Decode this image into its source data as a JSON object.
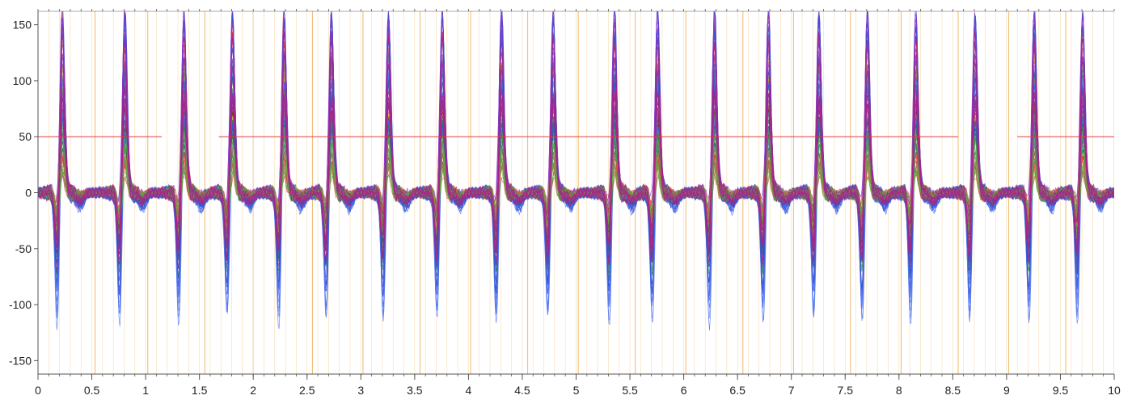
{
  "chart_data": {
    "type": "line",
    "title": "",
    "xlabel": "",
    "ylabel": "",
    "xlim": [
      0,
      10
    ],
    "ylim": [
      -162,
      162
    ],
    "x_ticks": [
      0,
      0.5,
      1,
      1.5,
      2,
      2.5,
      3,
      3.5,
      4,
      4.5,
      5,
      5.5,
      6,
      6.5,
      7,
      7.5,
      8,
      8.5,
      9,
      9.5,
      10
    ],
    "x_tick_labels": [
      "0",
      "0.5",
      "1",
      "1.5",
      "2",
      "2.5",
      "3",
      "3.5",
      "4",
      "4.5",
      "5",
      "5.5",
      "6",
      "6.5",
      "7",
      "7.5",
      "8",
      "8.5",
      "9",
      "9.5",
      "10"
    ],
    "y_ticks": [
      150,
      100,
      50,
      0,
      -50,
      -100,
      -150
    ],
    "y_tick_labels": [
      "150",
      "100",
      "50",
      "0",
      "-50",
      "-100",
      "-150"
    ],
    "grid": false,
    "legend": "none",
    "beat_times": [
      0.22,
      0.8,
      1.35,
      1.8,
      2.28,
      2.72,
      3.25,
      3.75,
      4.3,
      4.78,
      5.35,
      5.75,
      6.28,
      6.78,
      7.25,
      7.7,
      8.15,
      8.7,
      9.25,
      9.7
    ],
    "reference_level": 50,
    "reference_gaps": [
      [
        1.15,
        1.68
      ],
      [
        8.55,
        9.1
      ]
    ],
    "marker_times": [
      0.53,
      1.02,
      1.55,
      2.0,
      2.55,
      3.02,
      3.55,
      4.02,
      4.55,
      5.02,
      5.55,
      6.02,
      6.55,
      7.02,
      7.55,
      8.02,
      8.55,
      9.02,
      9.55,
      10.0
    ],
    "series": [
      {
        "color": "#dd2222",
        "peak": 175,
        "trough": -62,
        "noise": 3.0
      },
      {
        "color": "#3344dd",
        "peak": 170,
        "trough": -105,
        "noise": 3.0
      },
      {
        "color": "#2f8f2f",
        "peak": 112,
        "trough": -78,
        "noise": 2.5
      },
      {
        "color": "#8e3bd6",
        "peak": 185,
        "trough": -52,
        "noise": 3.0
      },
      {
        "color": "#6a2a1a",
        "peak": 92,
        "trough": -46,
        "noise": 2.0
      },
      {
        "color": "#cc8822",
        "peak": 108,
        "trough": -40,
        "noise": 2.5
      },
      {
        "color": "#5577ee",
        "peak": 132,
        "trough": -118,
        "noise": 2.5
      },
      {
        "color": "#1a7a3a",
        "peak": 68,
        "trough": -58,
        "noise": 2.0
      },
      {
        "color": "#e04444",
        "peak": 36,
        "trough": -28,
        "noise": 2.0
      },
      {
        "color": "#3355cc",
        "peak": 150,
        "trough": -92,
        "noise": 3.0
      },
      {
        "color": "#66aa44",
        "peak": 52,
        "trough": -36,
        "noise": 2.0
      },
      {
        "color": "#aa2288",
        "peak": 160,
        "trough": -70,
        "noise": 2.5
      }
    ],
    "colors": {
      "axis": "#555555",
      "marker_major": "#f0b86a",
      "marker_minor": "#f7dcb0",
      "reference_line": "#e23b3b"
    }
  }
}
